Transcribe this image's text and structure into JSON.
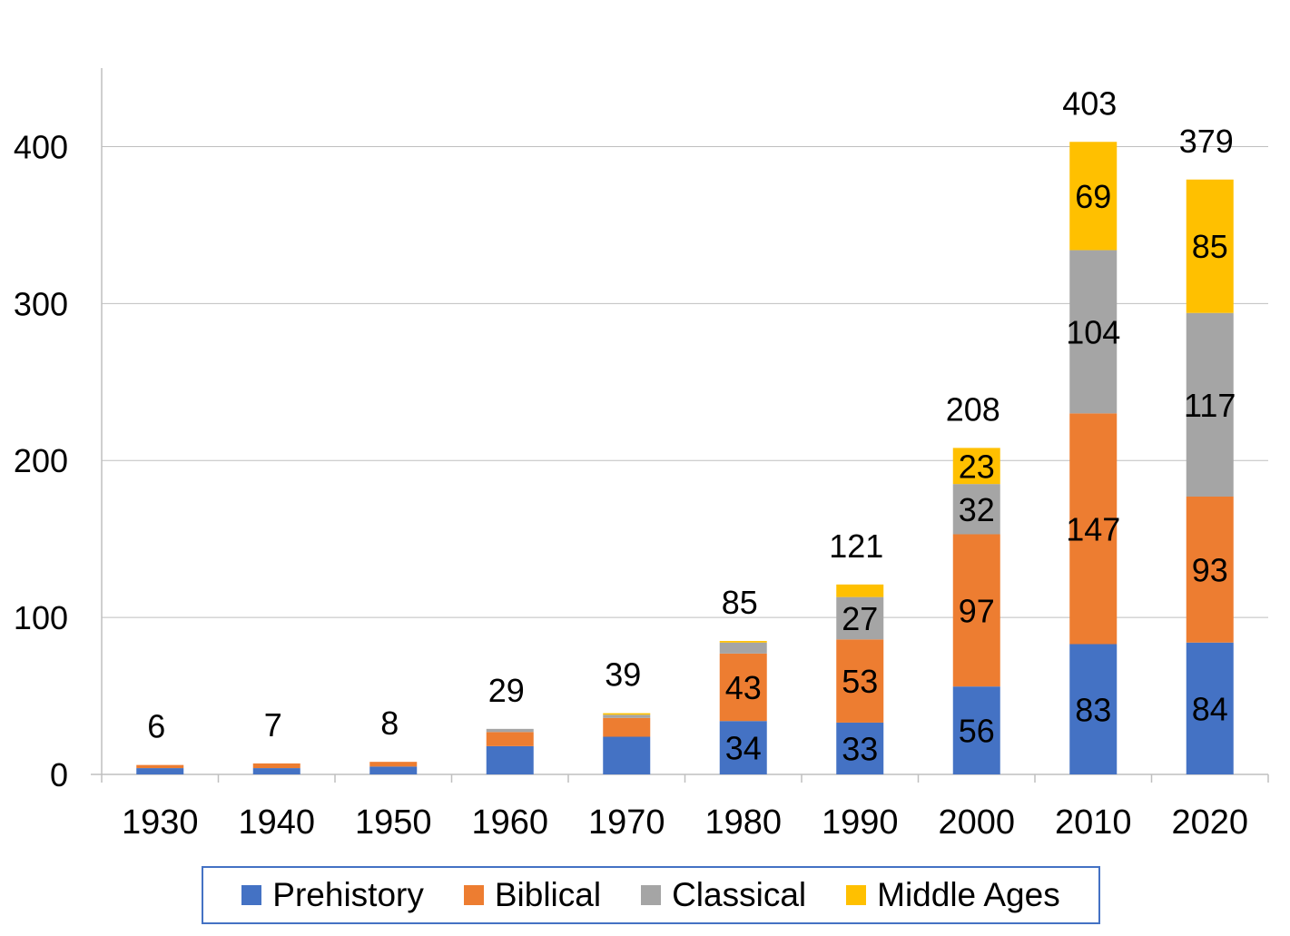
{
  "chart_data": {
    "type": "bar",
    "stacked": true,
    "categories": [
      "1930",
      "1940",
      "1950",
      "1960",
      "1970",
      "1980",
      "1990",
      "2000",
      "2010",
      "2020"
    ],
    "series": [
      {
        "name": "Prehistory",
        "color": "#4472c4",
        "values": [
          4,
          4,
          5,
          18,
          24,
          34,
          33,
          56,
          83,
          84
        ],
        "labels": [
          "",
          "",
          "",
          "",
          "",
          "34",
          "33",
          "56",
          "83",
          "84"
        ]
      },
      {
        "name": "Biblical",
        "color": "#ed7d31",
        "values": [
          2,
          3,
          3,
          9,
          12,
          43,
          53,
          97,
          147,
          93
        ],
        "labels": [
          "",
          "",
          "",
          "",
          "",
          "43",
          "53",
          "97",
          "147",
          "93"
        ]
      },
      {
        "name": "Classical",
        "color": "#a5a5a5",
        "values": [
          0,
          0,
          0,
          2,
          2,
          7,
          27,
          32,
          104,
          117
        ],
        "labels": [
          "",
          "",
          "",
          "",
          "",
          "",
          "27",
          "32",
          "104",
          "117"
        ]
      },
      {
        "name": "Middle Ages",
        "color": "#ffc000",
        "values": [
          0,
          0,
          0,
          0,
          1,
          1,
          8,
          23,
          69,
          85
        ],
        "labels": [
          "",
          "",
          "",
          "",
          "",
          "",
          "",
          "23",
          "69",
          "85"
        ]
      }
    ],
    "totals": [
      "6",
      "7",
      "8",
      "29",
      "39",
      "85",
      "121",
      "208",
      "403",
      "379"
    ],
    "yticks": [
      "0",
      "100",
      "200",
      "300",
      "400"
    ],
    "ylim": [
      0,
      450
    ],
    "grid": true,
    "legend_position": "bottom"
  }
}
